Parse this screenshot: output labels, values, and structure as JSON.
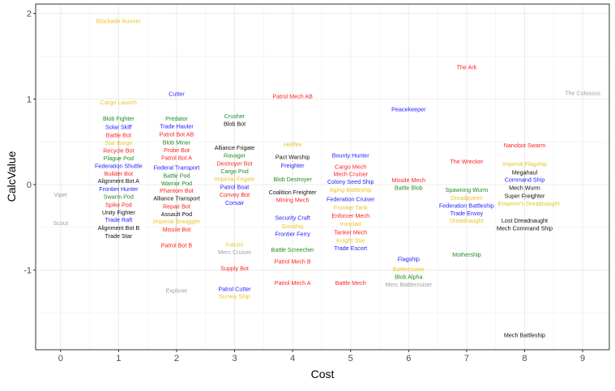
{
  "chart_data": {
    "type": "scatter",
    "title": "",
    "xlabel": "Cost",
    "ylabel": "CalcValue",
    "xlim": [
      -0.43,
      9.46
    ],
    "ylim": [
      -1.93,
      2.11
    ],
    "xticks": [
      0,
      1,
      2,
      3,
      4,
      5,
      6,
      7,
      8,
      9
    ],
    "yticks": [
      -1,
      0,
      1,
      2
    ],
    "grid": true,
    "legend": "none",
    "colors": {
      "yellow": "#e8c42a",
      "red": "#ff2222",
      "blue": "#2222ff",
      "green": "#228b22",
      "black": "#111111",
      "gray": "#a0a0a0"
    },
    "points": [
      {
        "label": "Blockade Runner",
        "x": 1,
        "y": 1.91,
        "c": "yellow"
      },
      {
        "label": "Cargo Launch",
        "x": 1,
        "y": 0.96,
        "c": "yellow"
      },
      {
        "label": "Blob Fighter",
        "x": 1,
        "y": 0.77,
        "c": "green"
      },
      {
        "label": "Solar Skiff",
        "x": 1,
        "y": 0.74,
        "c": "blue"
      },
      {
        "label": "Battle Bot",
        "x": 1,
        "y": 0.71,
        "c": "red"
      },
      {
        "label": "Star Barge",
        "x": 1,
        "y": 0.6,
        "c": "yellow"
      },
      {
        "label": "Recycle Bot",
        "x": 1,
        "y": 0.51,
        "c": "red"
      },
      {
        "label": "Plague Pod",
        "x": 1,
        "y": 0.45,
        "c": "green"
      },
      {
        "label": "Federation Shuttle",
        "x": 1,
        "y": 0.38,
        "c": "blue"
      },
      {
        "label": "Builder Bot",
        "x": 1,
        "y": 0.29,
        "c": "red"
      },
      {
        "label": "Alignment Bot A",
        "x": 1,
        "y": 0.25,
        "c": "black"
      },
      {
        "label": "Frontier Hunter",
        "x": 1,
        "y": 0.23,
        "c": "blue"
      },
      {
        "label": "Swarm Pod",
        "x": 1,
        "y": 0.17,
        "c": "green"
      },
      {
        "label": "Spike Pod",
        "x": 1,
        "y": 0.16,
        "c": "red"
      },
      {
        "label": "Unity Fighter",
        "x": 1,
        "y": 0.1,
        "c": "black"
      },
      {
        "label": "Trade Raft",
        "x": 1,
        "y": 0.05,
        "c": "blue"
      },
      {
        "label": "Alignment Bot B",
        "x": 1,
        "y": -0.11,
        "c": "black"
      },
      {
        "label": "Trade Star",
        "x": 1,
        "y": -0.25,
        "c": "black"
      },
      {
        "label": "Viper",
        "x": 0,
        "y": -0.12,
        "c": "gray"
      },
      {
        "label": "Scout",
        "x": 0,
        "y": -0.45,
        "c": "gray"
      },
      {
        "label": "Cutter",
        "x": 2,
        "y": 1.06,
        "c": "blue"
      },
      {
        "label": "Predator",
        "x": 2,
        "y": 0.77,
        "c": "green"
      },
      {
        "label": "Trade Hauler",
        "x": 2,
        "y": 0.7,
        "c": "blue"
      },
      {
        "label": "Patrol Bot AB",
        "x": 2,
        "y": 0.7,
        "c": "red"
      },
      {
        "label": "Blob Miner",
        "x": 2,
        "y": 0.52,
        "c": "green"
      },
      {
        "label": "Probe Bot",
        "x": 2,
        "y": 0.47,
        "c": "red"
      },
      {
        "label": "Patrol Bot A",
        "x": 2,
        "y": 0.33,
        "c": "red"
      },
      {
        "label": "Federal Transport",
        "x": 2,
        "y": 0.2,
        "c": "blue"
      },
      {
        "label": "Battle Pod",
        "x": 2,
        "y": 0.17,
        "c": "green"
      },
      {
        "label": "Warrior Pod",
        "x": 2,
        "y": 0.12,
        "c": "green"
      },
      {
        "label": "Phantom Bot",
        "x": 2,
        "y": 0.07,
        "c": "red"
      },
      {
        "label": "Alliance Transport",
        "x": 2,
        "y": 0.03,
        "c": "black"
      },
      {
        "label": "Repair Bot",
        "x": 2,
        "y": -0.15,
        "c": "red"
      },
      {
        "label": "Assault Pod",
        "x": 2,
        "y": -0.23,
        "c": "black"
      },
      {
        "label": "Imperial Smuggler",
        "x": 2,
        "y": -0.29,
        "c": "yellow"
      },
      {
        "label": "Missile Bot",
        "x": 2,
        "y": -0.29,
        "c": "red"
      },
      {
        "label": "Patrol Bot B",
        "x": 2,
        "y": -0.71,
        "c": "red"
      },
      {
        "label": "Explorer",
        "x": 2,
        "y": -1.24,
        "c": "gray"
      },
      {
        "label": "Crusher",
        "x": 3,
        "y": 0.8,
        "c": "green"
      },
      {
        "label": "Blob Bot",
        "x": 3,
        "y": 0.74,
        "c": "black"
      },
      {
        "label": "Alliance Frigate",
        "x": 3,
        "y": 0.43,
        "c": "black"
      },
      {
        "label": "Ravager",
        "x": 3,
        "y": 0.35,
        "c": "green"
      },
      {
        "label": "Destroyer Bot",
        "x": 3,
        "y": 0.32,
        "c": "red"
      },
      {
        "label": "Cargo Pod",
        "x": 3,
        "y": 0.27,
        "c": "green"
      },
      {
        "label": "Imperial Frigate",
        "x": 3,
        "y": 0.15,
        "c": "yellow"
      },
      {
        "label": "Patrol Boat",
        "x": 3,
        "y": 0.14,
        "c": "blue"
      },
      {
        "label": "Convoy Bot",
        "x": 3,
        "y": 0.07,
        "c": "red"
      },
      {
        "label": "Corsair",
        "x": 3,
        "y": -0.09,
        "c": "blue"
      },
      {
        "label": "Falcon",
        "x": 3,
        "y": -0.7,
        "c": "yellow"
      },
      {
        "label": "Merc Cruiser",
        "x": 3,
        "y": -0.77,
        "c": "gray"
      },
      {
        "label": "Supply Bot",
        "x": 3,
        "y": -0.98,
        "c": "red"
      },
      {
        "label": "Patrol Cutter",
        "x": 3,
        "y": -1.22,
        "c": "blue"
      },
      {
        "label": "Survey Ship",
        "x": 3,
        "y": -1.26,
        "c": "yellow"
      },
      {
        "label": "Patrol Mech AB",
        "x": 4,
        "y": 1.03,
        "c": "red"
      },
      {
        "label": "Hellfire",
        "x": 4,
        "y": 0.47,
        "c": "yellow"
      },
      {
        "label": "Pact Warship",
        "x": 4,
        "y": 0.32,
        "c": "black"
      },
      {
        "label": "Freighter",
        "x": 4,
        "y": 0.29,
        "c": "blue"
      },
      {
        "label": "Blob Destroyer",
        "x": 4,
        "y": 0.06,
        "c": "green"
      },
      {
        "label": "Coalition Freighter",
        "x": 4,
        "y": -0.09,
        "c": "black"
      },
      {
        "label": "Mining Mech",
        "x": 4,
        "y": -0.15,
        "c": "red"
      },
      {
        "label": "Security Craft",
        "x": 4,
        "y": -0.39,
        "c": "blue"
      },
      {
        "label": "Gunship",
        "x": 4,
        "y": -0.42,
        "c": "yellow"
      },
      {
        "label": "Frontier Ferry",
        "x": 4,
        "y": -0.53,
        "c": "blue"
      },
      {
        "label": "Battle Screecher",
        "x": 4,
        "y": -0.76,
        "c": "green"
      },
      {
        "label": "Patrol Mech B",
        "x": 4,
        "y": -0.9,
        "c": "red"
      },
      {
        "label": "Patrol Mech A",
        "x": 4,
        "y": -1.15,
        "c": "red"
      },
      {
        "label": "Bounty Hunter",
        "x": 5,
        "y": 0.34,
        "c": "blue"
      },
      {
        "label": "Cargo Mech",
        "x": 5,
        "y": 0.21,
        "c": "red"
      },
      {
        "label": "Mech Cruiser",
        "x": 5,
        "y": 0.14,
        "c": "red"
      },
      {
        "label": "Colony Seed Ship",
        "x": 5,
        "y": 0.09,
        "c": "blue"
      },
      {
        "label": "Aging Battleship",
        "x": 5,
        "y": -0.06,
        "c": "yellow"
      },
      {
        "label": "Federation Cruiser",
        "x": 5,
        "y": -0.17,
        "c": "blue"
      },
      {
        "label": "Frontier Tank",
        "x": 5,
        "y": -0.27,
        "c": "yellow"
      },
      {
        "label": "Enforcer Mech",
        "x": 5,
        "y": -0.27,
        "c": "red"
      },
      {
        "label": "Ironclad",
        "x": 5,
        "y": -0.46,
        "c": "yellow"
      },
      {
        "label": "Tanker Mech",
        "x": 5,
        "y": -0.49,
        "c": "red"
      },
      {
        "label": "Knight Star",
        "x": 5,
        "y": -0.52,
        "c": "yellow"
      },
      {
        "label": "Trade Escort",
        "x": 5,
        "y": -0.63,
        "c": "blue"
      },
      {
        "label": "Battle Mech",
        "x": 5,
        "y": -1.15,
        "c": "red"
      },
      {
        "label": "Peacekeeper",
        "x": 6,
        "y": 0.88,
        "c": "blue"
      },
      {
        "label": "Missile Mech",
        "x": 6,
        "y": 0.05,
        "c": "red"
      },
      {
        "label": "Battle Blob",
        "x": 6,
        "y": 0.01,
        "c": "green"
      },
      {
        "label": "Flagship",
        "x": 6,
        "y": -0.87,
        "c": "blue"
      },
      {
        "label": "Battlecruiser",
        "x": 6,
        "y": -0.99,
        "c": "yellow"
      },
      {
        "label": "Blob Alpha",
        "x": 6,
        "y": -1.08,
        "c": "green"
      },
      {
        "label": "Merc Battlecruiser",
        "x": 6,
        "y": -1.14,
        "c": "gray"
      },
      {
        "label": "The Ark",
        "x": 7,
        "y": 1.37,
        "c": "red"
      },
      {
        "label": "The Wrecker",
        "x": 7,
        "y": 0.27,
        "c": "red"
      },
      {
        "label": "Spawning Wurm",
        "x": 7,
        "y": -0.06,
        "c": "green"
      },
      {
        "label": "Dreadqueen",
        "x": 7,
        "y": -0.09,
        "c": "yellow"
      },
      {
        "label": "Federation Battleship",
        "x": 7,
        "y": -0.14,
        "c": "blue"
      },
      {
        "label": "Trade Envoy",
        "x": 7,
        "y": -0.23,
        "c": "blue"
      },
      {
        "label": "Dreadnaught",
        "x": 7,
        "y": -0.28,
        "c": "yellow"
      },
      {
        "label": "Mothership",
        "x": 7,
        "y": -0.82,
        "c": "green"
      },
      {
        "label": "Nanobot Swarm",
        "x": 8,
        "y": 0.46,
        "c": "red"
      },
      {
        "label": "Imperial Flagship",
        "x": 8,
        "y": 0.24,
        "c": "yellow"
      },
      {
        "label": "Megahaul",
        "x": 8,
        "y": 0.21,
        "c": "black"
      },
      {
        "label": "Command Ship",
        "x": 8,
        "y": 0.17,
        "c": "blue"
      },
      {
        "label": "Mech Wurm",
        "x": 8,
        "y": 0.14,
        "c": "black"
      },
      {
        "label": "Super Freighter",
        "x": 8,
        "y": -0.02,
        "c": "black"
      },
      {
        "label": "Emperor's Dreadnaught",
        "x": 8,
        "y": -0.1,
        "c": "yellow"
      },
      {
        "label": "Lost Dreadnaught",
        "x": 8,
        "y": -0.42,
        "c": "black"
      },
      {
        "label": "Mech Command Ship",
        "x": 8,
        "y": -0.51,
        "c": "black"
      },
      {
        "label": "Mech Battleship",
        "x": 8,
        "y": -1.76,
        "c": "black"
      },
      {
        "label": "The Colossus",
        "x": 9,
        "y": 1.07,
        "c": "gray"
      }
    ]
  }
}
